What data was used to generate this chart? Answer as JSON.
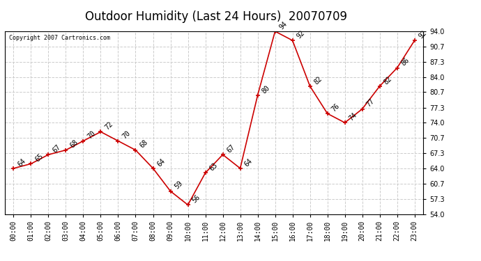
{
  "title": "Outdoor Humidity (Last 24 Hours)  20070709",
  "copyright": "Copyright 2007 Cartronics.com",
  "hours": [
    0,
    1,
    2,
    3,
    4,
    5,
    6,
    7,
    8,
    9,
    10,
    11,
    12,
    13,
    14,
    15,
    16,
    17,
    18,
    19,
    20,
    21,
    22,
    23
  ],
  "values": [
    64,
    65,
    67,
    68,
    70,
    72,
    70,
    68,
    64,
    59,
    56,
    63,
    67,
    64,
    80,
    94,
    92,
    82,
    76,
    74,
    77,
    82,
    86,
    92
  ],
  "ylim": [
    54.0,
    94.0
  ],
  "yticks": [
    54.0,
    57.3,
    60.7,
    64.0,
    67.3,
    70.7,
    74.0,
    77.3,
    80.7,
    84.0,
    87.3,
    90.7,
    94.0
  ],
  "line_color": "#cc0000",
  "marker_color": "#cc0000",
  "bg_color": "#ffffff",
  "plot_bg_color": "#ffffff",
  "grid_color": "#cccccc",
  "title_fontsize": 12,
  "label_fontsize": 7,
  "annotation_fontsize": 7
}
